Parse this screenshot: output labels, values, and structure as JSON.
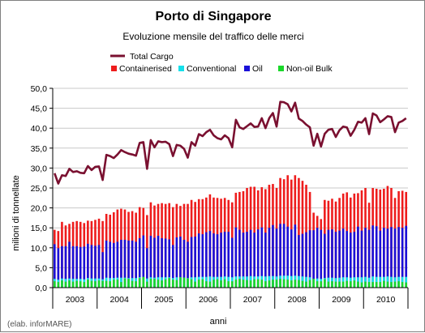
{
  "chart_data": {
    "type": "bar",
    "title": "Porto di Singapore",
    "subtitle": "Evoluzione mensile del traffico delle merci",
    "xlabel": "anni",
    "ylabel": "milioni di tonnellate",
    "credit": "(elab. inforMARE)",
    "ylim": [
      0,
      50
    ],
    "yticks": [
      "0,0",
      "5,0",
      "10,0",
      "15,0",
      "20,0",
      "25,0",
      "30,0",
      "35,0",
      "40,0",
      "45,0",
      "50,0"
    ],
    "years": [
      "2003",
      "2004",
      "2005",
      "2006",
      "2007",
      "2008",
      "2009",
      "2010"
    ],
    "months_per_year": 12,
    "grid": true,
    "legend": [
      {
        "name": "Total Cargo",
        "color": "#7a1030",
        "kind": "line"
      },
      {
        "name": "Containerised",
        "color": "#ee1c1c",
        "kind": "box"
      },
      {
        "name": "Conventional",
        "color": "#16e0ea",
        "kind": "box"
      },
      {
        "name": "Oil",
        "color": "#1a10d8",
        "kind": "box"
      },
      {
        "name": "Non-oil Bulk",
        "color": "#1ad82a",
        "kind": "box"
      }
    ],
    "series": [
      {
        "name": "Total Cargo",
        "color": "#7a1030",
        "values": [
          28.7,
          26.1,
          28.2,
          28.0,
          29.8,
          29.0,
          29.2,
          28.8,
          28.7,
          30.5,
          29.5,
          30.3,
          30.4,
          27.0,
          33.3,
          33.0,
          32.5,
          33.4,
          34.5,
          34.0,
          33.6,
          33.4,
          33.1,
          36.3,
          36.5,
          29.8,
          37.0,
          35.2,
          36.7,
          36.5,
          36.6,
          36.0,
          33.0,
          35.8,
          35.6,
          34.8,
          32.6,
          36.5,
          35.6,
          38.5,
          38.0,
          39.0,
          39.6,
          38.2,
          37.5,
          37.2,
          38.2,
          37.5,
          35.2,
          42.1,
          40.2,
          39.8,
          40.5,
          41.2,
          40.3,
          40.4,
          42.5,
          40.0,
          42.5,
          43.8,
          40.4,
          46.6,
          46.5,
          46.0,
          44.2,
          46.4,
          42.4,
          41.8,
          40.9,
          40.2,
          35.6,
          38.6,
          35.4,
          38.6,
          39.6,
          39.8,
          37.8,
          39.5,
          40.4,
          40.2,
          38.1,
          39.6,
          41.6,
          41.4,
          42.5,
          38.5,
          43.7,
          43.2,
          41.5,
          42.2,
          43.0,
          42.8,
          39.0,
          41.4,
          41.8,
          42.5
        ]
      },
      {
        "name": "Containerised",
        "color": "#ee1c1c",
        "values": [
          14.5,
          14.2,
          16.5,
          15.6,
          16.0,
          16.5,
          16.7,
          16.5,
          16.2,
          16.8,
          16.7,
          17.0,
          17.3,
          16.7,
          18.5,
          18.3,
          18.9,
          19.6,
          19.8,
          19.6,
          19.0,
          19.2,
          18.8,
          20.2,
          20.0,
          18.2,
          21.4,
          20.6,
          21.0,
          21.2,
          21.0,
          21.2,
          20.2,
          21.0,
          20.5,
          21.0,
          21.0,
          22.0,
          21.5,
          22.2,
          22.2,
          22.6,
          23.4,
          22.6,
          22.5,
          22.3,
          22.5,
          22.0,
          21.4,
          23.8,
          24.0,
          24.2,
          25.0,
          25.3,
          25.3,
          24.4,
          25.2,
          24.7,
          25.8,
          26.0,
          25.0,
          27.5,
          27.2,
          28.2,
          27.1,
          28.2,
          27.5,
          26.8,
          25.8,
          24.0,
          18.8,
          18.0,
          17.2,
          22.0,
          21.8,
          22.3,
          21.6,
          22.5,
          23.6,
          23.9,
          22.6,
          23.6,
          23.7,
          24.4,
          25.0,
          21.3,
          25.0,
          24.8,
          24.6,
          24.8,
          25.5,
          25.0,
          22.5,
          24.2,
          24.3,
          24.0
        ]
      },
      {
        "name": "Oil",
        "color": "#1a10d8",
        "values": [
          10.9,
          9.9,
          10.4,
          10.4,
          11.5,
          10.4,
          10.4,
          10.2,
          10.3,
          11.0,
          10.7,
          10.5,
          10.7,
          8.9,
          11.8,
          11.5,
          11.2,
          11.5,
          12.0,
          12.0,
          11.8,
          11.8,
          11.5,
          12.4,
          13.1,
          9.9,
          13.0,
          12.5,
          13.0,
          12.4,
          12.3,
          12.1,
          10.7,
          12.6,
          12.8,
          12.0,
          11.5,
          12.7,
          12.8,
          13.6,
          13.4,
          13.9,
          14.2,
          13.6,
          13.4,
          13.8,
          14.0,
          14.0,
          12.5,
          15.1,
          14.5,
          13.8,
          14.0,
          14.5,
          13.8,
          14.6,
          15.1,
          13.8,
          15.0,
          15.7,
          14.8,
          16.0,
          16.0,
          15.3,
          14.6,
          15.8,
          13.2,
          13.5,
          13.9,
          14.4,
          14.4,
          15.0,
          14.5,
          13.5,
          14.5,
          14.6,
          14.0,
          14.3,
          14.8,
          14.2,
          13.8,
          14.0,
          15.3,
          14.3,
          15.0,
          14.5,
          15.6,
          15.4,
          14.3,
          15.0,
          14.8,
          15.2,
          14.8,
          15.2,
          15.0,
          15.5
        ]
      },
      {
        "name": "Non-oil Bulk",
        "color": "#1ad82a",
        "values": [
          1.6,
          1.4,
          1.8,
          1.5,
          1.8,
          1.5,
          1.7,
          1.6,
          1.4,
          2.0,
          1.7,
          1.6,
          1.8,
          1.7,
          1.7,
          1.6,
          2.0,
          2.0,
          1.4,
          2.3,
          2.2,
          1.7,
          1.6,
          2.4,
          2.7,
          1.5,
          2.2,
          2.2,
          2.0,
          1.8,
          2.1,
          2.4,
          2.0,
          1.9,
          2.6,
          2.5,
          2.3,
          2.1,
          1.5,
          2.0,
          2.1,
          1.6,
          1.5,
          2.0,
          2.1,
          1.8,
          2.1,
          1.6,
          1.6,
          2.0,
          2.2,
          2.0,
          1.9,
          1.8,
          2.1,
          2.1,
          2.0,
          1.6,
          1.8,
          2.0,
          2.0,
          2.2,
          2.1,
          2.0,
          1.8,
          2.0,
          1.9,
          1.7,
          1.5,
          1.9,
          2.2,
          1.6,
          1.6,
          2.1,
          1.5,
          1.6,
          1.5,
          1.5,
          1.5,
          1.7,
          1.6,
          1.8,
          1.5,
          1.3,
          1.5,
          1.4,
          1.4,
          1.4,
          1.4,
          1.7,
          1.5,
          1.4,
          1.5,
          1.6,
          1.4,
          1.3
        ]
      },
      {
        "name": "Conventional",
        "color": "#16e0ea",
        "values": [
          2.2,
          2.0,
          2.3,
          2.2,
          2.3,
          2.2,
          2.2,
          2.2,
          2.1,
          2.4,
          2.3,
          2.3,
          2.3,
          2.1,
          2.5,
          2.4,
          2.4,
          2.5,
          2.5,
          2.5,
          2.4,
          2.4,
          2.4,
          2.6,
          2.6,
          2.3,
          2.6,
          2.5,
          2.6,
          2.6,
          2.6,
          2.6,
          2.4,
          2.6,
          2.6,
          2.5,
          2.4,
          2.6,
          2.6,
          2.7,
          2.7,
          2.7,
          2.8,
          2.7,
          2.7,
          2.7,
          2.8,
          2.7,
          2.6,
          2.8,
          2.8,
          2.8,
          2.8,
          2.9,
          2.8,
          2.8,
          2.9,
          2.8,
          2.9,
          2.9,
          2.8,
          3.0,
          3.0,
          3.0,
          2.9,
          3.0,
          2.9,
          2.8,
          2.7,
          2.6,
          2.2,
          2.3,
          2.2,
          2.4,
          2.5,
          2.5,
          2.4,
          2.5,
          2.6,
          2.6,
          2.5,
          2.6,
          2.6,
          2.6,
          2.7,
          2.5,
          2.8,
          2.7,
          2.7,
          2.7,
          2.8,
          2.7,
          2.6,
          2.7,
          2.7,
          2.7
        ]
      }
    ]
  }
}
